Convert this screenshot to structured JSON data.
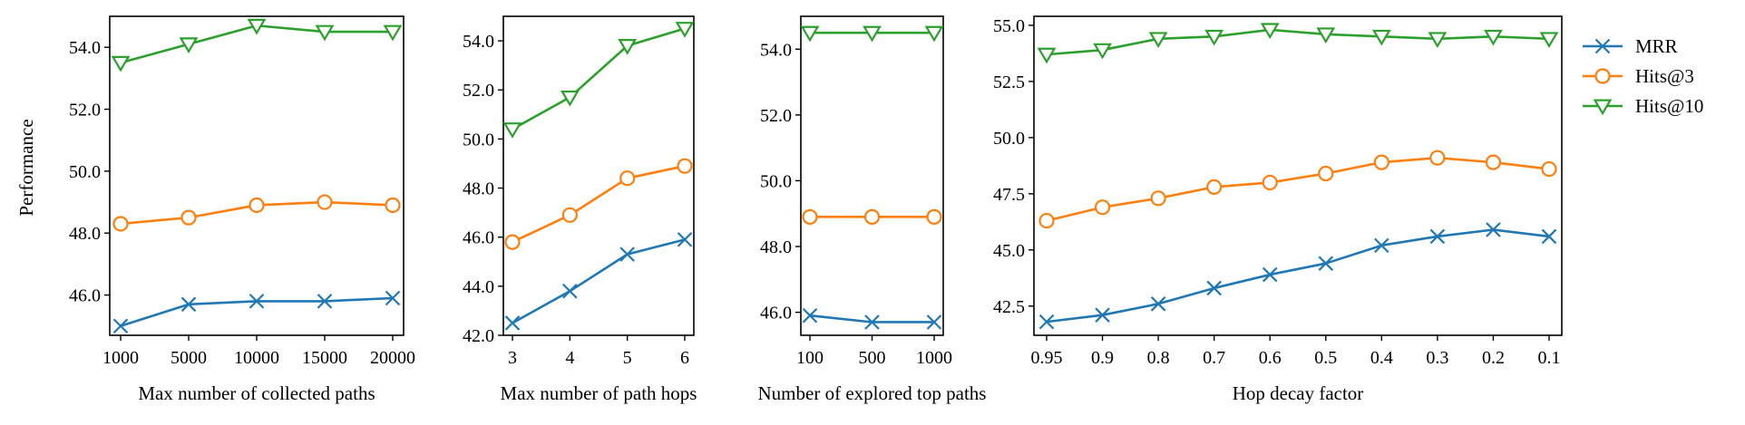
{
  "figure": {
    "shared_ylabel": "Performance",
    "colors": {
      "MRR": "#1f77b4",
      "Hits@3": "#ff7f0e",
      "Hits@10": "#2ca02c"
    },
    "markers": {
      "MRR": "x",
      "Hits@3": "circle",
      "Hits@10": "triangle-down"
    }
  },
  "legend": {
    "placement": "right",
    "entries": [
      "MRR",
      "Hits@3",
      "Hits@10"
    ]
  },
  "chart_data": [
    {
      "type": "line",
      "xlabel": "Max number of collected paths",
      "ylabel": "Performance",
      "categories": [
        "1000",
        "5000",
        "10000",
        "15000",
        "20000"
      ],
      "yticks": [
        "46.0",
        "48.0",
        "50.0",
        "52.0",
        "54.0"
      ],
      "ylim": [
        44.7,
        55.0
      ],
      "series": [
        {
          "name": "MRR",
          "values": [
            45.0,
            45.7,
            45.8,
            45.8,
            45.9
          ]
        },
        {
          "name": "Hits@3",
          "values": [
            48.3,
            48.5,
            48.9,
            49.0,
            48.9
          ]
        },
        {
          "name": "Hits@10",
          "values": [
            53.5,
            54.1,
            54.7,
            54.5,
            54.5
          ]
        }
      ]
    },
    {
      "type": "line",
      "xlabel": "Max number of path hops",
      "ylabel": "",
      "categories": [
        "3",
        "4",
        "5",
        "6"
      ],
      "yticks": [
        "42.0",
        "44.0",
        "46.0",
        "48.0",
        "50.0",
        "52.0",
        "54.0"
      ],
      "ylim": [
        42.0,
        55.0
      ],
      "series": [
        {
          "name": "MRR",
          "values": [
            42.5,
            43.8,
            45.3,
            45.9
          ]
        },
        {
          "name": "Hits@3",
          "values": [
            45.8,
            46.9,
            48.4,
            48.9
          ]
        },
        {
          "name": "Hits@10",
          "values": [
            50.4,
            51.7,
            53.8,
            54.5
          ]
        }
      ]
    },
    {
      "type": "line",
      "xlabel": "Number of explored top paths",
      "ylabel": "",
      "categories": [
        "100",
        "500",
        "1000"
      ],
      "yticks": [
        "46.0",
        "48.0",
        "50.0",
        "52.0",
        "54.0"
      ],
      "ylim": [
        45.3,
        55.0
      ],
      "series": [
        {
          "name": "MRR",
          "values": [
            45.9,
            45.7,
            45.7
          ]
        },
        {
          "name": "Hits@3",
          "values": [
            48.9,
            48.9,
            48.9
          ]
        },
        {
          "name": "Hits@10",
          "values": [
            54.5,
            54.5,
            54.5
          ]
        }
      ]
    },
    {
      "type": "line",
      "xlabel": "Hop decay factor",
      "ylabel": "",
      "categories": [
        "0.95",
        "0.9",
        "0.8",
        "0.7",
        "0.6",
        "0.5",
        "0.4",
        "0.3",
        "0.2",
        "0.1"
      ],
      "yticks": [
        "42.5",
        "45.0",
        "47.5",
        "50.0",
        "52.5",
        "55.0"
      ],
      "ylim": [
        41.2,
        55.4
      ],
      "series": [
        {
          "name": "MRR",
          "values": [
            41.8,
            42.1,
            42.6,
            43.3,
            43.9,
            44.4,
            45.2,
            45.6,
            45.9,
            45.6
          ]
        },
        {
          "name": "Hits@3",
          "values": [
            46.3,
            46.9,
            47.3,
            47.8,
            48.0,
            48.4,
            48.9,
            49.1,
            48.9,
            48.6
          ]
        },
        {
          "name": "Hits@10",
          "values": [
            53.7,
            53.9,
            54.4,
            54.5,
            54.8,
            54.6,
            54.5,
            54.4,
            54.5,
            54.4
          ]
        }
      ]
    }
  ]
}
